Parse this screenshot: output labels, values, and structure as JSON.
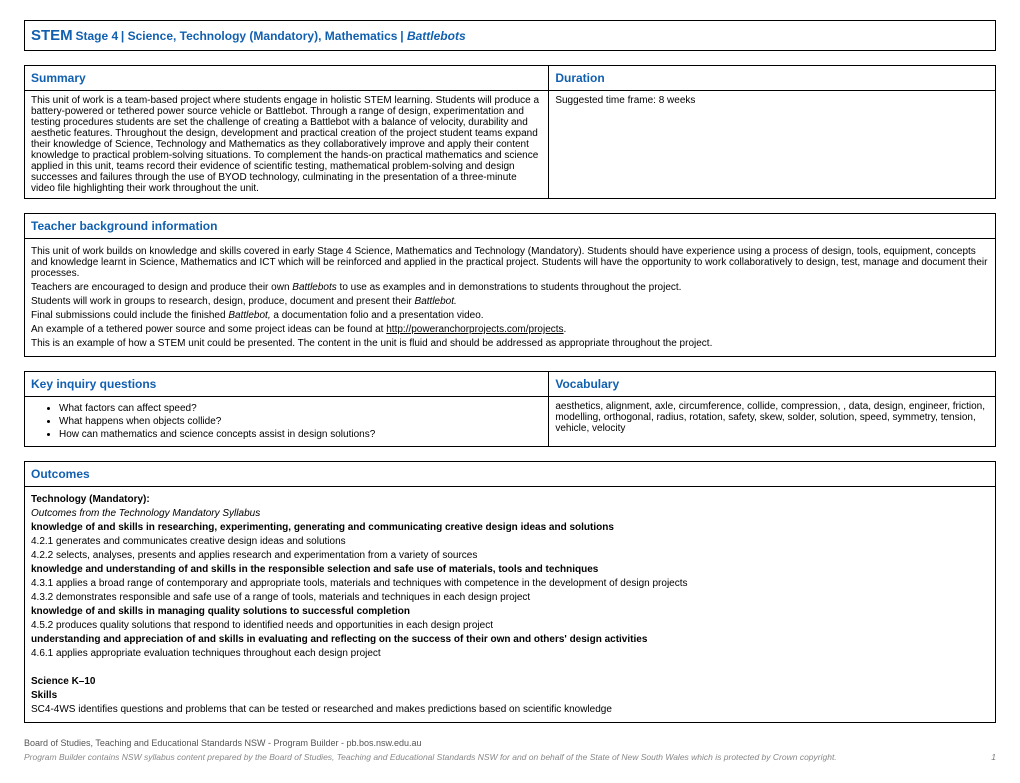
{
  "title": {
    "stem": "STEM",
    "stage": "Stage 4",
    "subjects": "Science, Technology (Mandatory), Mathematics",
    "unit": "Battlebots"
  },
  "summary": {
    "header": "Summary",
    "body": "This unit of work is a team-based project where students engage in holistic STEM learning. Students will produce a battery-powered or tethered power source vehicle or Battlebot. Through a range of design, experimentation and testing procedures students are set the challenge of creating a Battlebot with a balance of velocity, durability and aesthetic features. Throughout the design, development and practical creation of the project student teams expand their knowledge of Science, Technology and Mathematics as they collaboratively improve and apply their content knowledge to practical problem-solving situations. To complement the hands-on practical mathematics and science applied in this unit, teams record their evidence of scientific testing, mathematical problem-solving and design successes and failures through the use of BYOD technology, culminating in the presentation of a three-minute video file highlighting their work throughout the unit."
  },
  "duration": {
    "header": "Duration",
    "body": "Suggested time frame: 8 weeks"
  },
  "teacher": {
    "header": "Teacher background information",
    "p1": "This unit of work builds on knowledge and skills covered in early Stage 4 Science, Mathematics and Technology (Mandatory). Students should have experience using a process of design, tools, equipment, concepts and knowledge learnt in Science, Mathematics and ICT which will be reinforced and applied in the practical project. Students will have the opportunity to work collaboratively to design, test, manage and document their processes.",
    "p2a": "Teachers are encouraged to design and produce their own ",
    "p2b": "Battlebots",
    "p2c": " to use as examples and in demonstrations to students throughout the project.",
    "p3a": "Students will work in groups to research, design, produce, document and present their ",
    "p3b": "Battlebot.",
    "p4a": "Final submissions could include the finished ",
    "p4b": "Battlebot,",
    "p4c": " a documentation folio and a presentation video.",
    "p5a": "An example of a tethered power source and some project ideas can be found at ",
    "p5b": "http://poweranchorprojects.com/projects",
    "p5c": ".",
    "p6": "This is an example of how a STEM unit could be presented. The content in the unit is fluid and should be addressed as appropriate throughout the project."
  },
  "inquiry": {
    "header": "Key inquiry questions",
    "q1": "What factors can affect speed?",
    "q2": "What happens when objects collide?",
    "q3": "How can mathematics and science concepts assist in design solutions?"
  },
  "vocabulary": {
    "header": "Vocabulary",
    "body": "aesthetics, alignment, axle, circumference, collide, compression, , data, design, engineer, friction, modelling, orthogonal, radius, rotation, safety, skew, solder, solution, speed, symmetry, tension, vehicle, velocity"
  },
  "outcomes": {
    "header": "Outcomes",
    "tech_title": "Technology (Mandatory):",
    "tech_sub": "Outcomes from the Technology Mandatory Syllabus",
    "k1": "knowledge of and skills in researching, experimenting, generating and communicating creative design ideas and solutions",
    "o1": "4.2.1 generates and communicates creative design ideas and solutions",
    "o2": "4.2.2 selects, analyses, presents and applies research and experimentation from a variety of sources",
    "k2": "knowledge and understanding of and skills in the responsible selection and safe use of materials, tools and techniques",
    "o3": "4.3.1 applies a broad range of contemporary and appropriate tools, materials and techniques with competence in the development of design projects",
    "o4": "4.3.2 demonstrates responsible and safe use of a range of tools, materials and techniques in each design project",
    "k3": "knowledge of and skills in managing quality solutions to successful completion",
    "o5": "4.5.2 produces quality solutions that respond to identified needs and opportunities in each design project",
    "k4": "understanding and appreciation of and skills in evaluating and reflecting on the success of their own and others' design activities",
    "o6": "4.6.1 applies appropriate evaluation techniques throughout each design project",
    "sci_title": "Science K–10",
    "sci_sub": "Skills",
    "sci_o1": "SC4-4WS identifies questions and problems that can be tested or researched and makes predictions based on scientific knowledge"
  },
  "footer": {
    "line1": "Board of Studies, Teaching and Educational Standards NSW - Program Builder - pb.bos.nsw.edu.au",
    "line2": "Program Builder contains NSW syllabus content prepared by the Board of Studies, Teaching and Educational Standards NSW for and on behalf of the State of New South Wales which is protected by Crown copyright.",
    "page": "1"
  }
}
